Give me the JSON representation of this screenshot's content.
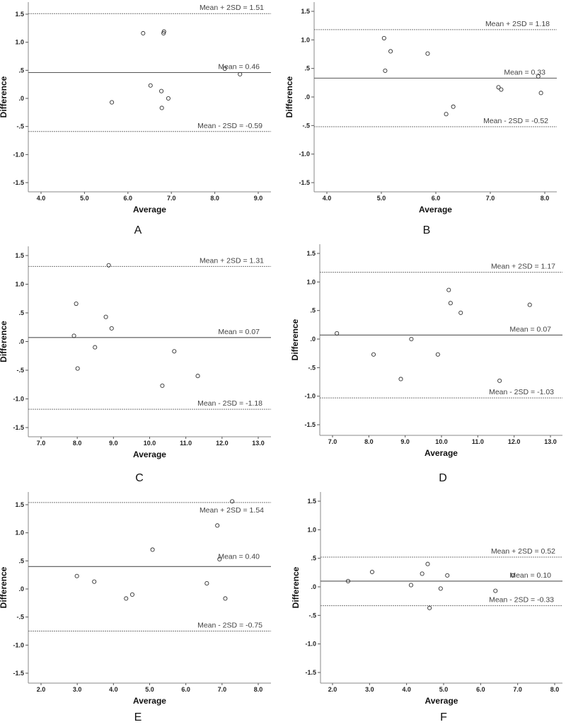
{
  "chart_data": [
    {
      "type": "scatter",
      "panel": "A",
      "xlabel": "Average",
      "ylabel": "Difference",
      "xlim": [
        3.75,
        9.25
      ],
      "ylim": [
        -1.65,
        1.65
      ],
      "xticks": [
        4.0,
        5.0,
        6.0,
        7.0,
        8.0,
        9.0
      ],
      "xtick_labels": [
        "4.0",
        "5.0",
        "6.0",
        "7.0",
        "8.0",
        "9.0"
      ],
      "yticks": [
        1.5,
        1.0,
        0.5,
        0.0,
        -0.5,
        -1.0,
        -1.5
      ],
      "ytick_labels": [
        "1.5",
        "1.0",
        ".5",
        ".0",
        "-.5",
        "-1.0",
        "-1.5"
      ],
      "mean": 0.46,
      "upper": 1.51,
      "lower": -0.59,
      "mean_label": "Mean = 0.46",
      "upper_label": "Mean + 2SD = 1.51",
      "lower_label": "Mean - 2SD = -0.59",
      "points": [
        {
          "x": 5.63,
          "y": -0.07
        },
        {
          "x": 6.35,
          "y": 1.16
        },
        {
          "x": 6.52,
          "y": 0.23
        },
        {
          "x": 6.77,
          "y": 0.13
        },
        {
          "x": 6.78,
          "y": -0.17
        },
        {
          "x": 6.82,
          "y": 1.16
        },
        {
          "x": 6.83,
          "y": 1.19
        },
        {
          "x": 6.93,
          "y": 0.0
        },
        {
          "x": 8.23,
          "y": 0.53
        },
        {
          "x": 8.58,
          "y": 0.43
        }
      ]
    },
    {
      "type": "scatter",
      "panel": "B",
      "xlabel": "Average",
      "ylabel": "Difference",
      "xlim": [
        3.8,
        8.2
      ],
      "ylim": [
        -1.65,
        1.65
      ],
      "xticks": [
        4.0,
        5.0,
        6.0,
        7.0,
        8.0
      ],
      "xtick_labels": [
        "4.0",
        "5.0",
        "6.0",
        "7.0",
        "8.0"
      ],
      "yticks": [
        1.5,
        1.0,
        0.5,
        0.0,
        -0.5,
        -1.0,
        -1.5
      ],
      "ytick_labels": [
        "1.5",
        "1.0",
        ".5",
        ".0",
        "-.5",
        "-1.0",
        "-1.5"
      ],
      "mean": 0.33,
      "upper": 1.18,
      "lower": -0.52,
      "mean_label": "Mean = 0.33",
      "upper_label": "Mean + 2SD = 1.18",
      "lower_label": "Mean - 2SD = -0.52",
      "points": [
        {
          "x": 5.05,
          "y": 1.03
        },
        {
          "x": 5.07,
          "y": 0.46
        },
        {
          "x": 5.17,
          "y": 0.8
        },
        {
          "x": 5.85,
          "y": 0.76
        },
        {
          "x": 6.19,
          "y": -0.3
        },
        {
          "x": 6.32,
          "y": -0.17
        },
        {
          "x": 7.15,
          "y": 0.17
        },
        {
          "x": 7.2,
          "y": 0.13
        },
        {
          "x": 7.88,
          "y": 0.36
        },
        {
          "x": 7.93,
          "y": 0.07
        }
      ]
    },
    {
      "type": "scatter",
      "panel": "C",
      "xlabel": "Average",
      "ylabel": "Difference",
      "xlim": [
        6.7,
        13.3
      ],
      "ylim": [
        -1.68,
        1.65
      ],
      "xticks": [
        7.0,
        8.0,
        9.0,
        10.0,
        11.0,
        12.0,
        13.0
      ],
      "xtick_labels": [
        "7.0",
        "8.0",
        "9.0",
        "10.0",
        "11.0",
        "12.0",
        "13.0"
      ],
      "yticks": [
        1.5,
        1.0,
        0.5,
        0.0,
        -0.5,
        -1.0,
        -1.5
      ],
      "ytick_labels": [
        "1.5",
        "1.0",
        ".5",
        ".0",
        "-.5",
        "-1.0",
        "-1.5"
      ],
      "mean": 0.07,
      "upper": 1.31,
      "lower": -1.18,
      "mean_label": "Mean = 0.07",
      "upper_label": "Mean + 2SD = 1.31",
      "lower_label": "Mean - 2SD = -1.18",
      "points": [
        {
          "x": 7.91,
          "y": 0.1
        },
        {
          "x": 7.97,
          "y": 0.66
        },
        {
          "x": 8.01,
          "y": -0.47
        },
        {
          "x": 8.49,
          "y": -0.1
        },
        {
          "x": 8.79,
          "y": 0.43
        },
        {
          "x": 8.87,
          "y": 1.33
        },
        {
          "x": 8.95,
          "y": 0.23
        },
        {
          "x": 10.35,
          "y": -0.77
        },
        {
          "x": 10.68,
          "y": -0.17
        },
        {
          "x": 11.33,
          "y": -0.6
        }
      ]
    },
    {
      "type": "scatter",
      "panel": "D",
      "xlabel": "Average",
      "ylabel": "Difference",
      "xlim": [
        6.7,
        13.3
      ],
      "ylim": [
        -1.68,
        1.65
      ],
      "xticks": [
        7.0,
        8.0,
        9.0,
        10.0,
        11.0,
        12.0,
        13.0
      ],
      "xtick_labels": [
        "7.0",
        "8.0",
        "9.0",
        "10.0",
        "11.0",
        "12.0",
        "13.0"
      ],
      "yticks": [
        1.5,
        1.0,
        0.5,
        0.0,
        -0.5,
        -1.0,
        -1.5
      ],
      "ytick_labels": [
        "1.5",
        "1.0",
        ".5",
        ".0",
        "-.5",
        "-1.0",
        "-1.5"
      ],
      "mean": 0.07,
      "upper": 1.17,
      "lower": -1.03,
      "mean_label": "Mean = 0.07",
      "upper_label": "Mean + 2SD = 1.17",
      "lower_label": "Mean - 2SD = -1.03",
      "points": [
        {
          "x": 7.12,
          "y": 0.1
        },
        {
          "x": 8.13,
          "y": -0.27
        },
        {
          "x": 8.88,
          "y": -0.7
        },
        {
          "x": 9.17,
          "y": 0.0
        },
        {
          "x": 9.9,
          "y": -0.27
        },
        {
          "x": 10.2,
          "y": 0.86
        },
        {
          "x": 10.25,
          "y": 0.63
        },
        {
          "x": 10.53,
          "y": 0.46
        },
        {
          "x": 11.6,
          "y": -0.73
        },
        {
          "x": 12.43,
          "y": 0.6
        }
      ]
    },
    {
      "type": "scatter",
      "panel": "E",
      "xlabel": "Average",
      "ylabel": "Difference",
      "xlim": [
        1.7,
        8.35
      ],
      "ylim": [
        -1.68,
        1.7
      ],
      "xticks": [
        2.0,
        3.0,
        4.0,
        5.0,
        6.0,
        7.0,
        8.0
      ],
      "xtick_labels": [
        "2.0",
        "3.0",
        "4.0",
        "5.0",
        "6.0",
        "7.0",
        "8.0"
      ],
      "yticks": [
        1.5,
        1.0,
        0.5,
        0.0,
        -0.5,
        -1.0,
        -1.5
      ],
      "ytick_labels": [
        "1.5",
        "1.0",
        ".5",
        ".0",
        "-.5",
        "-1.0",
        "-1.5"
      ],
      "mean": 0.4,
      "upper": 1.54,
      "lower": -0.75,
      "mean_label": "Mean = 0.40",
      "upper_label": "Mean + 2SD = 1.54",
      "lower_label": "Mean - 2SD = -0.75",
      "points": [
        {
          "x": 2.99,
          "y": 0.23
        },
        {
          "x": 3.47,
          "y": 0.13
        },
        {
          "x": 4.35,
          "y": -0.17
        },
        {
          "x": 4.52,
          "y": -0.1
        },
        {
          "x": 5.08,
          "y": 0.7
        },
        {
          "x": 6.58,
          "y": 0.1
        },
        {
          "x": 6.87,
          "y": 1.13
        },
        {
          "x": 6.93,
          "y": 0.53
        },
        {
          "x": 7.09,
          "y": -0.17
        },
        {
          "x": 7.28,
          "y": 1.56
        }
      ]
    },
    {
      "type": "scatter",
      "panel": "F",
      "xlabel": "Average",
      "ylabel": "Difference",
      "xlim": [
        1.7,
        8.25
      ],
      "ylim": [
        -1.68,
        1.7
      ],
      "xticks": [
        2.0,
        3.0,
        4.0,
        5.0,
        6.0,
        7.0,
        8.0
      ],
      "xtick_labels": [
        "2.0",
        "3.0",
        "4.0",
        "5.0",
        "6.0",
        "7.0",
        "8.0"
      ],
      "yticks": [
        1.5,
        1.0,
        0.5,
        0.0,
        -0.5,
        -1.0,
        -1.5
      ],
      "ytick_labels": [
        "1.5",
        "1.0",
        ".5",
        ".0",
        "-.5",
        "-1.0",
        "-1.5"
      ],
      "mean": 0.1,
      "upper": 0.52,
      "lower": -0.33,
      "mean_label": "Mean = 0.10",
      "upper_label": "Mean + 2SD = 0.52",
      "lower_label": "Mean - 2SD = -0.33",
      "points": [
        {
          "x": 2.42,
          "y": 0.1
        },
        {
          "x": 3.07,
          "y": 0.26
        },
        {
          "x": 4.12,
          "y": 0.03
        },
        {
          "x": 4.42,
          "y": 0.23
        },
        {
          "x": 4.57,
          "y": 0.4
        },
        {
          "x": 4.62,
          "y": -0.37
        },
        {
          "x": 4.92,
          "y": -0.03
        },
        {
          "x": 5.1,
          "y": 0.2
        },
        {
          "x": 6.4,
          "y": -0.07
        },
        {
          "x": 6.87,
          "y": 0.2
        }
      ]
    }
  ]
}
